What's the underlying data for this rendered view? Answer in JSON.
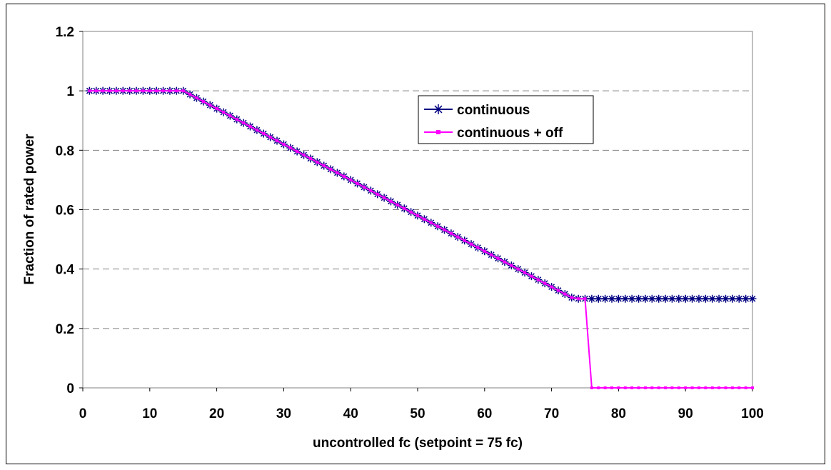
{
  "chart_data": {
    "type": "line",
    "title": "",
    "xlabel": "uncontrolled fc (setpoint = 75 fc)",
    "ylabel": "Fraction of rated power",
    "xlim": [
      0,
      100
    ],
    "ylim": [
      0,
      1.2
    ],
    "x_ticks": [
      "0",
      "10",
      "20",
      "30",
      "40",
      "50",
      "60",
      "70",
      "80",
      "90",
      "100"
    ],
    "y_ticks": [
      "0",
      "0.2",
      "0.4",
      "0.6",
      "0.8",
      "1",
      "1.2"
    ],
    "grid": "horizontal dashed",
    "legend_position": "upper-middle-right",
    "series": [
      {
        "name": "continuous",
        "color": "#000080",
        "marker": "asterisk",
        "x": [
          1,
          2,
          3,
          4,
          5,
          6,
          7,
          8,
          9,
          10,
          11,
          12,
          13,
          14,
          15,
          16,
          17,
          18,
          19,
          20,
          21,
          22,
          23,
          24,
          25,
          26,
          27,
          28,
          29,
          30,
          31,
          32,
          33,
          34,
          35,
          36,
          37,
          38,
          39,
          40,
          41,
          42,
          43,
          44,
          45,
          46,
          47,
          48,
          49,
          50,
          51,
          52,
          53,
          54,
          55,
          56,
          57,
          58,
          59,
          60,
          61,
          62,
          63,
          64,
          65,
          66,
          67,
          68,
          69,
          70,
          71,
          72,
          73,
          74,
          75,
          76,
          77,
          78,
          79,
          80,
          81,
          82,
          83,
          84,
          85,
          86,
          87,
          88,
          89,
          90,
          91,
          92,
          93,
          94,
          95,
          96,
          97,
          98,
          99,
          100
        ],
        "y": [
          1,
          1,
          1,
          1,
          1,
          1,
          1,
          1,
          1,
          1,
          1,
          1,
          1,
          1,
          1,
          0.988,
          0.976,
          0.964,
          0.952,
          0.94,
          0.928,
          0.916,
          0.904,
          0.892,
          0.88,
          0.868,
          0.856,
          0.844,
          0.832,
          0.82,
          0.808,
          0.796,
          0.784,
          0.772,
          0.76,
          0.748,
          0.736,
          0.724,
          0.712,
          0.7,
          0.688,
          0.676,
          0.664,
          0.652,
          0.64,
          0.628,
          0.616,
          0.604,
          0.592,
          0.58,
          0.568,
          0.556,
          0.544,
          0.532,
          0.52,
          0.508,
          0.496,
          0.484,
          0.472,
          0.46,
          0.448,
          0.436,
          0.424,
          0.412,
          0.4,
          0.388,
          0.376,
          0.364,
          0.352,
          0.34,
          0.328,
          0.316,
          0.304,
          0.3,
          0.3,
          0.3,
          0.3,
          0.3,
          0.3,
          0.3,
          0.3,
          0.3,
          0.3,
          0.3,
          0.3,
          0.3,
          0.3,
          0.3,
          0.3,
          0.3,
          0.3,
          0.3,
          0.3,
          0.3,
          0.3,
          0.3,
          0.3,
          0.3,
          0.3,
          0.3
        ]
      },
      {
        "name": "continuous + off",
        "color": "#ff00ff",
        "marker": "square",
        "x": [
          1,
          2,
          3,
          4,
          5,
          6,
          7,
          8,
          9,
          10,
          11,
          12,
          13,
          14,
          15,
          16,
          17,
          18,
          19,
          20,
          21,
          22,
          23,
          24,
          25,
          26,
          27,
          28,
          29,
          30,
          31,
          32,
          33,
          34,
          35,
          36,
          37,
          38,
          39,
          40,
          41,
          42,
          43,
          44,
          45,
          46,
          47,
          48,
          49,
          50,
          51,
          52,
          53,
          54,
          55,
          56,
          57,
          58,
          59,
          60,
          61,
          62,
          63,
          64,
          65,
          66,
          67,
          68,
          69,
          70,
          71,
          72,
          73,
          74,
          75,
          76,
          77,
          78,
          79,
          80,
          81,
          82,
          83,
          84,
          85,
          86,
          87,
          88,
          89,
          90,
          91,
          92,
          93,
          94,
          95,
          96,
          97,
          98,
          99,
          100
        ],
        "y": [
          1,
          1,
          1,
          1,
          1,
          1,
          1,
          1,
          1,
          1,
          1,
          1,
          1,
          1,
          1,
          0.988,
          0.976,
          0.964,
          0.952,
          0.94,
          0.928,
          0.916,
          0.904,
          0.892,
          0.88,
          0.868,
          0.856,
          0.844,
          0.832,
          0.82,
          0.808,
          0.796,
          0.784,
          0.772,
          0.76,
          0.748,
          0.736,
          0.724,
          0.712,
          0.7,
          0.688,
          0.676,
          0.664,
          0.652,
          0.64,
          0.628,
          0.616,
          0.604,
          0.592,
          0.58,
          0.568,
          0.556,
          0.544,
          0.532,
          0.52,
          0.508,
          0.496,
          0.484,
          0.472,
          0.46,
          0.448,
          0.436,
          0.424,
          0.412,
          0.4,
          0.388,
          0.376,
          0.364,
          0.352,
          0.34,
          0.328,
          0.316,
          0.304,
          0.3,
          0.3,
          0,
          0,
          0,
          0,
          0,
          0,
          0,
          0,
          0,
          0,
          0,
          0,
          0,
          0,
          0,
          0,
          0,
          0,
          0,
          0,
          0,
          0,
          0,
          0,
          0
        ]
      }
    ]
  }
}
